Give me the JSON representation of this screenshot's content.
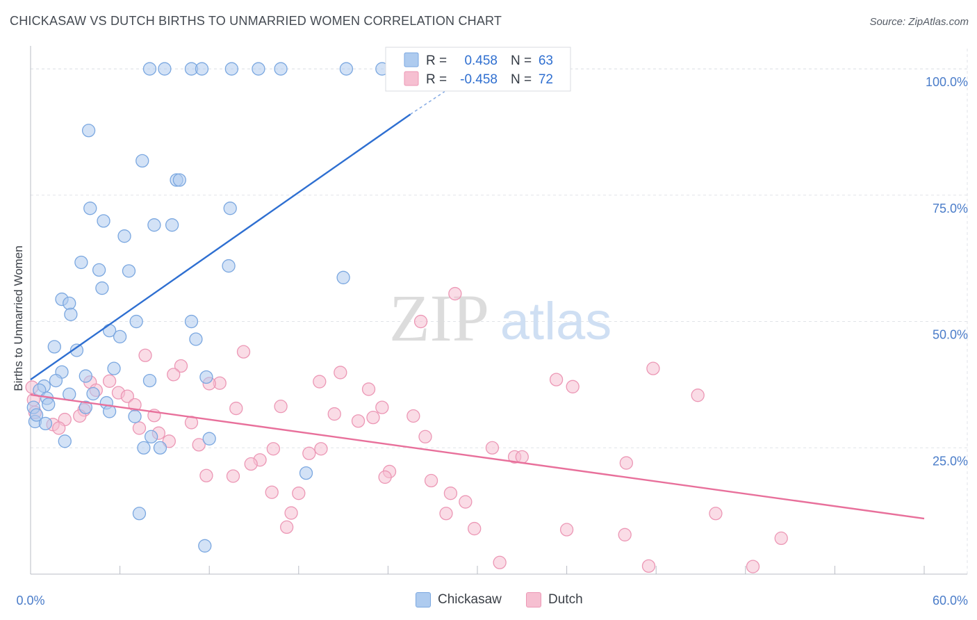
{
  "title": "CHICKASAW VS DUTCH BIRTHS TO UNMARRIED WOMEN CORRELATION CHART",
  "source": "Source: ZipAtlas.com",
  "watermark": {
    "zip": "ZIP",
    "atlas": "atlas"
  },
  "colors": {
    "chickasaw_fill": "#aecbef",
    "chickasaw_stroke": "#7aa7e0",
    "chickasaw_line": "#2e6fd1",
    "dutch_fill": "#f6bfd1",
    "dutch_stroke": "#ec97b5",
    "dutch_line": "#e8709b",
    "axis_text": "#4a7cc9",
    "grid": "#e0e3e8"
  },
  "legend": {
    "rows": [
      {
        "r_label": "R =",
        "r_value": "0.458",
        "n_label": "N =",
        "n_value": "63"
      },
      {
        "r_label": "R =",
        "r_value": "-0.458",
        "n_label": "N =",
        "n_value": "72"
      }
    ]
  },
  "bottom_legend": {
    "chickasaw": "Chickasaw",
    "dutch": "Dutch"
  },
  "chart_data": {
    "type": "scatter",
    "title": "CHICKASAW VS DUTCH BIRTHS TO UNMARRIED WOMEN CORRELATION CHART",
    "xlabel": "",
    "ylabel": "Births to Unmarried Women",
    "xlim": [
      0,
      60
    ],
    "ylim": [
      0,
      104
    ],
    "x_tick_labels": [
      "0.0%",
      "60.0%"
    ],
    "y_ticks": [
      25,
      50,
      75,
      100
    ],
    "y_tick_labels": [
      "25.0%",
      "50.0%",
      "75.0%",
      "100.0%"
    ],
    "grid": true,
    "series": [
      {
        "name": "Chickasaw",
        "r": 0.458,
        "n": 63,
        "trend": {
          "x": [
            0,
            25.5
          ],
          "y": [
            38.5,
            91
          ]
        },
        "trend_dashed": {
          "x": [
            25.5,
            27.8
          ],
          "y": [
            91,
            95.5
          ]
        },
        "points": [
          [
            8.0,
            100
          ],
          [
            9.0,
            100
          ],
          [
            10.8,
            100
          ],
          [
            11.5,
            100
          ],
          [
            13.5,
            100
          ],
          [
            15.3,
            100
          ],
          [
            16.8,
            100
          ],
          [
            21.2,
            100
          ],
          [
            23.6,
            100
          ],
          [
            3.9,
            87.8
          ],
          [
            7.5,
            81.8
          ],
          [
            9.8,
            78.0
          ],
          [
            10.0,
            78.0
          ],
          [
            4.0,
            72.4
          ],
          [
            13.4,
            72.4
          ],
          [
            4.9,
            69.9
          ],
          [
            8.3,
            69.1
          ],
          [
            9.5,
            69.1
          ],
          [
            6.3,
            66.9
          ],
          [
            3.4,
            61.7
          ],
          [
            13.3,
            61.0
          ],
          [
            4.6,
            60.2
          ],
          [
            6.6,
            60.0
          ],
          [
            21.0,
            58.7
          ],
          [
            4.8,
            56.6
          ],
          [
            2.1,
            54.4
          ],
          [
            2.6,
            53.6
          ],
          [
            2.7,
            51.4
          ],
          [
            7.1,
            50.0
          ],
          [
            10.8,
            50.0
          ],
          [
            5.3,
            48.2
          ],
          [
            6.0,
            47.0
          ],
          [
            11.1,
            46.5
          ],
          [
            1.6,
            45.0
          ],
          [
            3.1,
            44.3
          ],
          [
            5.6,
            40.7
          ],
          [
            2.1,
            40.0
          ],
          [
            3.7,
            39.2
          ],
          [
            8.0,
            38.3
          ],
          [
            11.8,
            39.0
          ],
          [
            1.7,
            38.3
          ],
          [
            0.9,
            37.2
          ],
          [
            0.6,
            36.4
          ],
          [
            4.2,
            35.7
          ],
          [
            2.6,
            35.6
          ],
          [
            1.1,
            34.8
          ],
          [
            5.1,
            33.9
          ],
          [
            1.2,
            33.6
          ],
          [
            3.7,
            33.0
          ],
          [
            5.3,
            32.2
          ],
          [
            7.0,
            31.2
          ],
          [
            0.3,
            30.2
          ],
          [
            1.0,
            29.8
          ],
          [
            8.1,
            27.2
          ],
          [
            12.0,
            26.8
          ],
          [
            2.3,
            26.3
          ],
          [
            7.6,
            25.0
          ],
          [
            8.7,
            25.0
          ],
          [
            18.5,
            20.0
          ],
          [
            7.3,
            12.0
          ],
          [
            11.7,
            5.6
          ],
          [
            0.2,
            33.0
          ],
          [
            0.4,
            31.5
          ]
        ]
      },
      {
        "name": "Dutch",
        "r": -0.458,
        "n": 72,
        "trend": {
          "x": [
            0,
            60
          ],
          "y": [
            35.5,
            11.0
          ]
        },
        "points": [
          [
            28.5,
            55.5
          ],
          [
            26.2,
            50.0
          ],
          [
            14.3,
            44.0
          ],
          [
            7.7,
            43.3
          ],
          [
            10.1,
            41.2
          ],
          [
            41.8,
            40.7
          ],
          [
            20.8,
            39.9
          ],
          [
            9.6,
            39.5
          ],
          [
            5.3,
            38.2
          ],
          [
            4.0,
            38.0
          ],
          [
            19.4,
            38.1
          ],
          [
            35.3,
            38.5
          ],
          [
            12.7,
            37.8
          ],
          [
            12.0,
            37.7
          ],
          [
            36.4,
            37.1
          ],
          [
            22.7,
            36.6
          ],
          [
            4.4,
            36.4
          ],
          [
            5.9,
            35.9
          ],
          [
            6.5,
            35.2
          ],
          [
            44.8,
            35.4
          ],
          [
            7.0,
            33.5
          ],
          [
            16.8,
            33.2
          ],
          [
            23.6,
            33.0
          ],
          [
            13.8,
            32.8
          ],
          [
            3.6,
            32.5
          ],
          [
            20.4,
            31.7
          ],
          [
            8.3,
            31.4
          ],
          [
            3.3,
            31.3
          ],
          [
            23.0,
            31.0
          ],
          [
            25.7,
            31.3
          ],
          [
            2.3,
            30.6
          ],
          [
            22.0,
            30.3
          ],
          [
            10.8,
            30.0
          ],
          [
            1.5,
            29.6
          ],
          [
            1.9,
            28.9
          ],
          [
            7.3,
            28.9
          ],
          [
            8.6,
            27.9
          ],
          [
            26.5,
            27.2
          ],
          [
            9.3,
            26.3
          ],
          [
            11.3,
            25.6
          ],
          [
            16.3,
            24.8
          ],
          [
            19.5,
            24.8
          ],
          [
            31.0,
            25.0
          ],
          [
            18.7,
            23.9
          ],
          [
            15.4,
            22.6
          ],
          [
            32.5,
            23.2
          ],
          [
            33.0,
            23.2
          ],
          [
            14.8,
            21.8
          ],
          [
            40.0,
            22.0
          ],
          [
            24.1,
            20.3
          ],
          [
            11.8,
            19.5
          ],
          [
            13.6,
            19.4
          ],
          [
            23.8,
            19.2
          ],
          [
            26.9,
            18.5
          ],
          [
            16.2,
            16.2
          ],
          [
            18.0,
            16.0
          ],
          [
            28.2,
            16.0
          ],
          [
            29.2,
            14.3
          ],
          [
            46.0,
            12.0
          ],
          [
            17.5,
            12.1
          ],
          [
            27.9,
            12.0
          ],
          [
            17.2,
            9.3
          ],
          [
            29.8,
            9.0
          ],
          [
            36.0,
            8.8
          ],
          [
            39.9,
            7.8
          ],
          [
            50.4,
            7.1
          ],
          [
            31.5,
            2.3
          ],
          [
            41.5,
            1.6
          ],
          [
            48.5,
            1.5
          ],
          [
            0.1,
            37.0
          ],
          [
            0.2,
            34.5
          ],
          [
            0.3,
            32.0
          ]
        ]
      }
    ]
  }
}
